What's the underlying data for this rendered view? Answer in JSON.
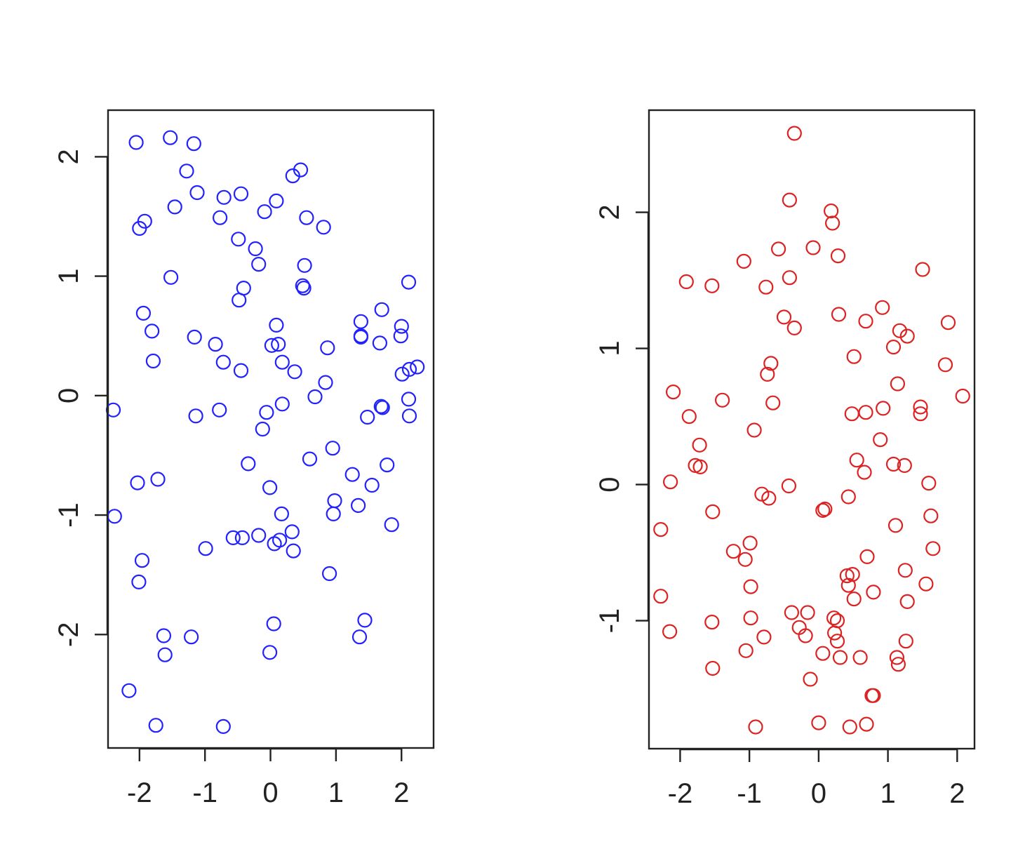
{
  "chart_data": [
    {
      "type": "scatter",
      "color": "#2222ff",
      "marker": "open-circle",
      "grid": false,
      "xlim": [
        -2.48,
        2.49
      ],
      "ylim": [
        -2.95,
        2.39
      ],
      "xticks": [
        -2,
        -1,
        0,
        1,
        2
      ],
      "yticks": [
        -2,
        -1,
        0,
        1,
        2
      ],
      "xticklabels": [
        "-2",
        "-1",
        "0",
        "1",
        "2"
      ],
      "yticklabels": [
        "-2",
        "-1",
        "0",
        "1",
        "2"
      ],
      "x": [
        -2.05,
        -1.53,
        -1.17,
        -1.28,
        -0.71,
        -0.45,
        0.46,
        0.34,
        -1.46,
        -1.12,
        -0.09,
        0.09,
        -0.77,
        -2.0,
        -1.92,
        0.55,
        0.81,
        -0.49,
        -0.23,
        -0.18,
        -1.52,
        0.52,
        2.11,
        -0.41,
        -0.48,
        0.49,
        0.51,
        -1.94,
        1.7,
        1.38,
        -1.81,
        0.09,
        2.0,
        1.38,
        1.38,
        -1.16,
        1.99,
        1.67,
        -0.84,
        0.02,
        0.12,
        -0.72,
        -1.79,
        0.18,
        0.87,
        -0.45,
        0.37,
        2.24,
        2.12,
        2.01,
        0.84,
        0.68,
        -2.4,
        1.69,
        2.11,
        1.71,
        0.18,
        -0.06,
        -0.78,
        -1.14,
        1.48,
        2.12,
        -0.12,
        0.95,
        -0.34,
        0.6,
        1.78,
        1.25,
        1.55,
        -2.03,
        -1.72,
        -0.01,
        1.34,
        0.98,
        0.96,
        1.85,
        -2.38,
        0.17,
        0.33,
        -0.57,
        -0.43,
        -0.18,
        0.14,
        -0.99,
        0.06,
        0.35,
        -1.96,
        0.9,
        -2.01,
        1.44,
        0.05,
        1.36,
        -1.63,
        -1.21,
        -1.61,
        -0.01,
        -2.16,
        -1.75,
        -0.72
      ],
      "y": [
        2.12,
        2.16,
        2.11,
        1.88,
        1.66,
        1.69,
        1.89,
        1.84,
        1.58,
        1.7,
        1.54,
        1.63,
        1.49,
        1.4,
        1.46,
        1.49,
        1.41,
        1.31,
        1.23,
        1.1,
        0.99,
        1.09,
        0.95,
        0.9,
        0.8,
        0.92,
        0.9,
        0.69,
        0.72,
        0.62,
        0.54,
        0.59,
        0.58,
        0.5,
        0.49,
        0.49,
        0.5,
        0.44,
        0.43,
        0.42,
        0.43,
        0.28,
        0.29,
        0.28,
        0.4,
        0.21,
        0.2,
        0.24,
        0.22,
        0.18,
        0.11,
        -0.01,
        -0.12,
        -0.09,
        -0.03,
        -0.1,
        -0.07,
        -0.14,
        -0.12,
        -0.17,
        -0.18,
        -0.17,
        -0.28,
        -0.44,
        -0.57,
        -0.53,
        -0.58,
        -0.66,
        -0.75,
        -0.73,
        -0.7,
        -0.77,
        -0.92,
        -0.88,
        -0.99,
        -1.08,
        -1.01,
        -0.99,
        -1.14,
        -1.19,
        -1.19,
        -1.17,
        -1.21,
        -1.28,
        -1.24,
        -1.3,
        -1.38,
        -1.49,
        -1.56,
        -1.88,
        -1.91,
        -2.02,
        -2.01,
        -2.02,
        -2.17,
        -2.15,
        -2.47,
        -2.76,
        -2.77
      ]
    },
    {
      "type": "scatter",
      "color": "#dd2222",
      "marker": "open-circle",
      "grid": false,
      "xlim": [
        -2.45,
        2.25
      ],
      "ylim": [
        -1.94,
        2.75
      ],
      "xticks": [
        -2,
        -1,
        0,
        1,
        2
      ],
      "yticks": [
        -1,
        0,
        1,
        2
      ],
      "xticklabels": [
        "-2",
        "-1",
        "0",
        "1",
        "2"
      ],
      "yticklabels": [
        "-1",
        "0",
        "1",
        "2"
      ],
      "x": [
        -0.35,
        -0.42,
        0.18,
        0.2,
        -0.58,
        -0.08,
        0.28,
        -1.08,
        1.5,
        -1.91,
        -1.54,
        -0.76,
        -0.42,
        0.92,
        -0.5,
        0.29,
        0.68,
        -0.35,
        1.87,
        1.17,
        1.28,
        1.08,
        0.51,
        1.83,
        -0.69,
        -0.74,
        1.14,
        -2.1,
        2.08,
        -1.39,
        -0.66,
        1.47,
        0.93,
        0.68,
        0.48,
        1.47,
        -1.87,
        -1.72,
        0.89,
        -0.93,
        0.55,
        -1.78,
        -1.71,
        1.08,
        1.24,
        0.66,
        -2.14,
        1.59,
        -0.43,
        -0.82,
        -0.72,
        0.43,
        0.09,
        0.06,
        -1.53,
        1.62,
        -2.28,
        1.11,
        -1.23,
        -0.99,
        1.65,
        -1.06,
        0.7,
        0.49,
        0.41,
        1.25,
        0.43,
        1.55,
        -0.98,
        0.79,
        -2.28,
        0.51,
        -0.39,
        -0.16,
        0.22,
        0.27,
        -0.98,
        -1.54,
        1.28,
        -0.28,
        -2.15,
        0.23,
        -0.19,
        -0.79,
        0.27,
        1.26,
        -1.05,
        0.06,
        0.31,
        0.6,
        1.13,
        1.15,
        -1.53,
        -0.12,
        0.77,
        0.79,
        0.0,
        0.69,
        0.45,
        -0.91
      ],
      "y": [
        2.58,
        2.09,
        2.01,
        1.92,
        1.73,
        1.74,
        1.68,
        1.64,
        1.58,
        1.49,
        1.46,
        1.45,
        1.52,
        1.3,
        1.23,
        1.25,
        1.2,
        1.15,
        1.19,
        1.13,
        1.09,
        1.01,
        0.94,
        0.88,
        0.89,
        0.81,
        0.74,
        0.68,
        0.65,
        0.62,
        0.6,
        0.57,
        0.56,
        0.53,
        0.52,
        0.52,
        0.5,
        0.29,
        0.33,
        0.4,
        0.18,
        0.14,
        0.13,
        0.15,
        0.14,
        0.09,
        0.02,
        0.01,
        -0.01,
        -0.07,
        -0.1,
        -0.09,
        -0.18,
        -0.19,
        -0.2,
        -0.23,
        -0.33,
        -0.3,
        -0.49,
        -0.43,
        -0.47,
        -0.55,
        -0.53,
        -0.66,
        -0.67,
        -0.63,
        -0.74,
        -0.73,
        -0.75,
        -0.79,
        -0.82,
        -0.84,
        -0.94,
        -0.94,
        -0.98,
        -1.0,
        -0.98,
        -1.01,
        -0.86,
        -1.05,
        -1.08,
        -1.09,
        -1.11,
        -1.12,
        -1.15,
        -1.15,
        -1.22,
        -1.24,
        -1.27,
        -1.27,
        -1.27,
        -1.32,
        -1.35,
        -1.43,
        -1.55,
        -1.55,
        -1.75,
        -1.76,
        -1.78,
        -1.78
      ]
    }
  ]
}
